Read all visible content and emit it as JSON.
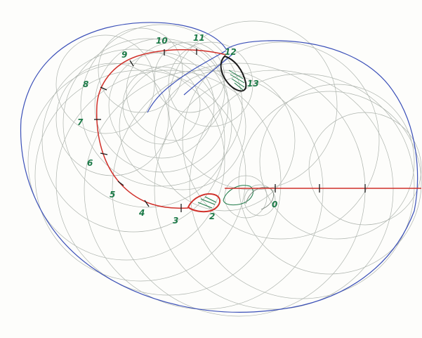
{
  "colors": {
    "paper": "#fdfdfb",
    "envelope": "#3a4fb8",
    "spiral": "#d0302a",
    "circles": "#6f7a70",
    "labels": "#1d7a48"
  },
  "labels": {
    "l0": "0",
    "l2": "2",
    "l3": "3",
    "l4": "4",
    "l5": "5",
    "l6": "6",
    "l7": "7",
    "l8": "8",
    "l9": "9",
    "l10": "10",
    "l11": "11",
    "l12": "12",
    "l13": "13"
  }
}
